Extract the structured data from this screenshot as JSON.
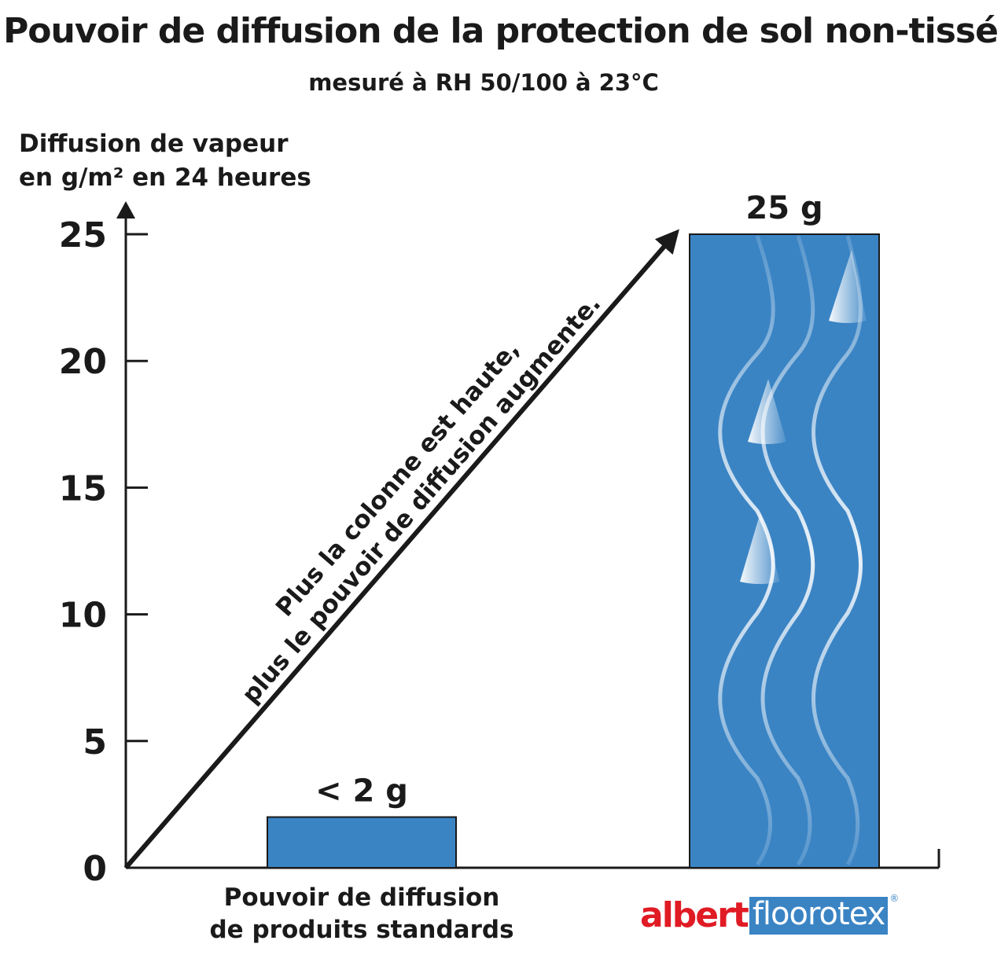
{
  "header": {
    "title": "Pouvoir de diffusion de la protection de sol non-tissé",
    "subtitle": "mesuré à RH 50/100 à 23°C"
  },
  "axis": {
    "ylabel_line1": "Diffusion de vapeur",
    "ylabel_line2": "en g/m² en 24 heures"
  },
  "annotation": {
    "line1": "Plus la colonne est haute,",
    "line2": "plus le pouvoir de diffusion augmente."
  },
  "categories": {
    "standard_line1": "Pouvoir de diffusion",
    "standard_line2": "de produits standards"
  },
  "logo": {
    "albert": "albert",
    "floorotex": "floorotex",
    "reg": "®"
  },
  "colors": {
    "bar": "#3a84c4",
    "logo_red": "#e01b24",
    "logo_blue": "#3a84c4",
    "ink": "#1a1a1a"
  },
  "chart_data": {
    "type": "bar",
    "title": "Pouvoir de diffusion de la protection de sol non-tissé",
    "subtitle": "mesuré à RH 50/100 à 23°C",
    "ylabel": "Diffusion de vapeur en g/m² en 24 heures",
    "ylim": [
      0,
      25
    ],
    "yticks": [
      "0",
      "5",
      "10",
      "15",
      "20",
      "25"
    ],
    "ytick_values": [
      0,
      5,
      10,
      15,
      20,
      25
    ],
    "categories": [
      "Pouvoir de diffusion de produits standards",
      "albert floorotex"
    ],
    "values": [
      2,
      25
    ],
    "data_labels": [
      "< 2 g",
      "25 g"
    ],
    "grid": false
  }
}
